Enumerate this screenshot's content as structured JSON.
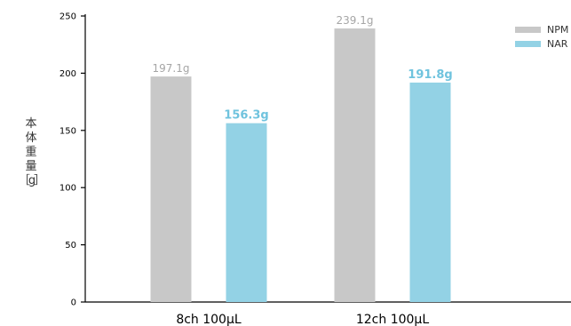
{
  "chart_data": {
    "type": "bar",
    "title": "",
    "xlabel": "",
    "ylabel": "本体重量［g］",
    "ylim": [
      0,
      250
    ],
    "yticks": [
      0,
      50,
      100,
      150,
      200,
      250
    ],
    "categories": [
      "8ch 100μL",
      "12ch 100μL"
    ],
    "series": [
      {
        "name": "NPM",
        "color": "#c8c8c8",
        "values": [
          197.1,
          239.1
        ],
        "labels": [
          "197.1g",
          "239.1g"
        ],
        "label_color": "#a6a6a6",
        "label_bold": false
      },
      {
        "name": "NAR",
        "color": "#93d2e5",
        "values": [
          156.3,
          191.8
        ],
        "labels": [
          "156.3g",
          "191.8g"
        ],
        "label_color": "#6fc3de",
        "label_bold": true
      }
    ],
    "legend_position": "top-right",
    "grid": false
  }
}
